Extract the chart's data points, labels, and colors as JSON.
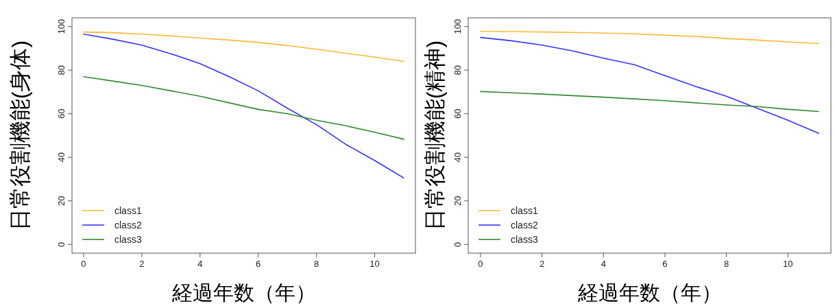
{
  "chart_data": [
    {
      "type": "line",
      "xlabel": "経過年数（年）",
      "ylabel": "日常役割機能(身体)",
      "x": [
        0,
        1,
        2,
        3,
        4,
        5,
        6,
        7,
        8,
        9,
        10,
        11
      ],
      "xlim": [
        -0.4,
        11.4
      ],
      "ylim": [
        -4,
        104
      ],
      "xticks": [
        0,
        2,
        4,
        6,
        8,
        10
      ],
      "yticks": [
        0,
        20,
        40,
        60,
        80,
        100
      ],
      "legend": "bottom left",
      "series": [
        {
          "name": "class1",
          "color": "#ffb733",
          "values": [
            97.5,
            97.2,
            96.5,
            95.7,
            94.7,
            93.8,
            92.7,
            91.3,
            89.6,
            87.8,
            86,
            84
          ]
        },
        {
          "name": "class2",
          "color": "#3333ff",
          "values": [
            96.5,
            94.2,
            91.5,
            87.5,
            83,
            77,
            70.5,
            62.5,
            55,
            46,
            38.5,
            30.5
          ]
        },
        {
          "name": "class3",
          "color": "#338833",
          "values": [
            77,
            75,
            73,
            70.5,
            68,
            65,
            62,
            60,
            57,
            54.5,
            51.5,
            48.3
          ]
        }
      ]
    },
    {
      "type": "line",
      "xlabel": "経過年数（年）",
      "ylabel": "日常役割機能(精神)",
      "x": [
        0,
        1,
        2,
        3,
        4,
        5,
        6,
        7,
        8,
        9,
        10,
        11
      ],
      "xlim": [
        -0.4,
        11.4
      ],
      "ylim": [
        -4,
        104
      ],
      "xticks": [
        0,
        2,
        4,
        6,
        8,
        10
      ],
      "yticks": [
        0,
        20,
        40,
        60,
        80,
        100
      ],
      "legend": "bottom left",
      "series": [
        {
          "name": "class1",
          "color": "#ffb733",
          "values": [
            97.8,
            97.7,
            97.5,
            97.3,
            97,
            96.7,
            96,
            95.5,
            94.5,
            93.8,
            93,
            92.2
          ]
        },
        {
          "name": "class2",
          "color": "#3333ff",
          "values": [
            95,
            93.5,
            91.5,
            88.8,
            85.5,
            82.5,
            77.5,
            72.5,
            68,
            62.5,
            57,
            51
          ]
        },
        {
          "name": "class3",
          "color": "#338833",
          "values": [
            70.2,
            69.6,
            69,
            68.3,
            67.6,
            66.8,
            66,
            65,
            64,
            63.3,
            62,
            61
          ]
        }
      ]
    }
  ]
}
